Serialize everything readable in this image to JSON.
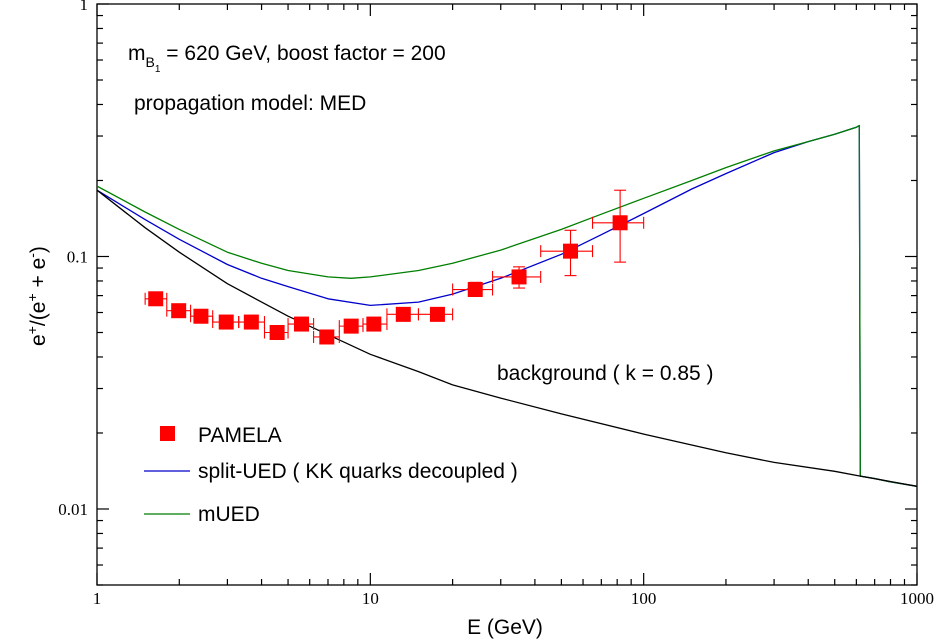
{
  "chart_data": {
    "type": "line",
    "xlabel": "E (GeV)",
    "ylabel_parts": {
      "base": "e",
      "sup1": "+",
      "mid": "/(e",
      "sup2": "+",
      "mid2": " + e",
      "sup3": "-",
      "end": ")"
    },
    "x_scale": "log",
    "y_scale": "log",
    "xlim": [
      1,
      1000
    ],
    "ylim": [
      0.005,
      1
    ],
    "x_ticks": [
      {
        "value": 1,
        "label": "1"
      },
      {
        "value": 10,
        "label": "10"
      },
      {
        "value": 100,
        "label": "100"
      },
      {
        "value": 1000,
        "label": "1000"
      }
    ],
    "y_ticks": [
      {
        "value": 0.01,
        "label": "0.01"
      },
      {
        "value": 0.1,
        "label": "0.1"
      },
      {
        "value": 1,
        "label": "1"
      }
    ],
    "annotations": {
      "mass_prefix": "m",
      "mass_sub": "B",
      "mass_subsub": "1",
      "mass_rest": " = 620 GeV, boost factor = 200",
      "propagation": "propagation model: MED",
      "background": "background ( k = 0.85 )"
    },
    "legend": [
      {
        "label": "PAMELA",
        "marker": "square",
        "color": "#ff0000"
      },
      {
        "label": "split-UED ( KK quarks decoupled )",
        "marker": "line",
        "color": "#0000cc"
      },
      {
        "label": "mUED",
        "marker": "line",
        "color": "#007f00"
      }
    ],
    "series": [
      {
        "name": "PAMELA",
        "kind": "points",
        "color": "#ff0000",
        "points": [
          {
            "x": 1.64,
            "xlo": 1.5,
            "xhi": 1.8,
            "y": 0.068,
            "ylo": 0.066,
            "yhi": 0.07
          },
          {
            "x": 1.99,
            "xlo": 1.8,
            "xhi": 2.2,
            "y": 0.061,
            "ylo": 0.059,
            "yhi": 0.063
          },
          {
            "x": 2.4,
            "xlo": 2.2,
            "xhi": 2.65,
            "y": 0.058,
            "ylo": 0.056,
            "yhi": 0.06
          },
          {
            "x": 2.97,
            "xlo": 2.65,
            "xhi": 3.3,
            "y": 0.055,
            "ylo": 0.053,
            "yhi": 0.057
          },
          {
            "x": 3.67,
            "xlo": 3.3,
            "xhi": 4.1,
            "y": 0.055,
            "ylo": 0.053,
            "yhi": 0.057
          },
          {
            "x": 4.56,
            "xlo": 4.1,
            "xhi": 5.0,
            "y": 0.05,
            "ylo": 0.048,
            "yhi": 0.052
          },
          {
            "x": 5.6,
            "xlo": 5.0,
            "xhi": 6.2,
            "y": 0.054,
            "ylo": 0.052,
            "yhi": 0.056
          },
          {
            "x": 6.93,
            "xlo": 6.2,
            "xhi": 7.7,
            "y": 0.048,
            "ylo": 0.046,
            "yhi": 0.05
          },
          {
            "x": 8.51,
            "xlo": 7.7,
            "xhi": 9.4,
            "y": 0.053,
            "ylo": 0.051,
            "yhi": 0.055
          },
          {
            "x": 10.3,
            "xlo": 9.4,
            "xhi": 11.5,
            "y": 0.054,
            "ylo": 0.052,
            "yhi": 0.056
          },
          {
            "x": 13.2,
            "xlo": 11.5,
            "xhi": 15.0,
            "y": 0.059,
            "ylo": 0.057,
            "yhi": 0.061
          },
          {
            "x": 17.6,
            "xlo": 15.0,
            "xhi": 20.0,
            "y": 0.059,
            "ylo": 0.057,
            "yhi": 0.062
          },
          {
            "x": 24.2,
            "xlo": 20.0,
            "xhi": 28.0,
            "y": 0.074,
            "ylo": 0.07,
            "yhi": 0.079
          },
          {
            "x": 35.0,
            "xlo": 28.0,
            "xhi": 42.0,
            "y": 0.083,
            "ylo": 0.075,
            "yhi": 0.091
          },
          {
            "x": 54.0,
            "xlo": 42.0,
            "xhi": 65.0,
            "y": 0.105,
            "ylo": 0.084,
            "yhi": 0.127
          },
          {
            "x": 82.0,
            "xlo": 65.0,
            "xhi": 100.0,
            "y": 0.136,
            "ylo": 0.095,
            "yhi": 0.183
          }
        ]
      },
      {
        "name": "split-UED ( KK quarks decoupled )",
        "kind": "line",
        "color": "#0000cc",
        "x": [
          1,
          1.5,
          2,
          3,
          4,
          5,
          7,
          10,
          15,
          20,
          30,
          50,
          70,
          100,
          150,
          200,
          300,
          400,
          500,
          600,
          615,
          620,
          700,
          800,
          1000
        ],
        "y": [
          0.183,
          0.14,
          0.117,
          0.093,
          0.082,
          0.076,
          0.068,
          0.064,
          0.066,
          0.071,
          0.082,
          0.102,
          0.122,
          0.148,
          0.185,
          0.213,
          0.258,
          0.285,
          0.305,
          0.325,
          0.33,
          0.0135,
          0.0132,
          0.0128,
          0.0123
        ]
      },
      {
        "name": "mUED",
        "kind": "line",
        "color": "#007f00",
        "x": [
          1,
          1.5,
          2,
          3,
          4,
          5,
          7,
          8.5,
          10,
          15,
          20,
          30,
          50,
          70,
          100,
          150,
          200,
          300,
          400,
          500,
          600,
          615,
          620,
          700,
          800,
          1000
        ],
        "y": [
          0.19,
          0.15,
          0.128,
          0.104,
          0.094,
          0.088,
          0.083,
          0.082,
          0.083,
          0.088,
          0.094,
          0.106,
          0.128,
          0.147,
          0.17,
          0.2,
          0.225,
          0.262,
          0.285,
          0.305,
          0.325,
          0.33,
          0.0135,
          0.0132,
          0.0128,
          0.0123
        ]
      },
      {
        "name": "background ( k = 0.85 )",
        "kind": "line",
        "color": "#000000",
        "x": [
          1,
          1.5,
          2,
          3,
          4,
          5,
          7,
          10,
          15,
          20,
          30,
          50,
          100,
          200,
          300,
          500,
          620,
          1000
        ],
        "y": [
          0.183,
          0.13,
          0.104,
          0.078,
          0.066,
          0.058,
          0.049,
          0.041,
          0.035,
          0.031,
          0.0275,
          0.0238,
          0.0198,
          0.0167,
          0.0153,
          0.0141,
          0.0135,
          0.0123
        ]
      }
    ]
  }
}
